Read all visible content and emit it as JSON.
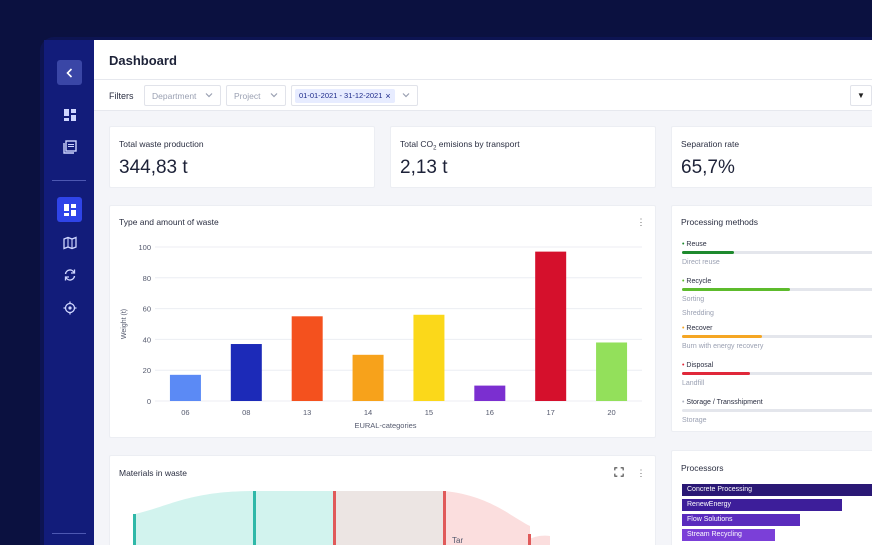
{
  "header": {
    "title": "Dashboard"
  },
  "filters": {
    "label": "Filters",
    "department": "Department",
    "project": "Project",
    "date_range": "01-01-2021 - 31-12-2021",
    "dropdown_icon": "caret-down-icon"
  },
  "kpis": [
    {
      "label": "Total waste production",
      "value": "344,83 t"
    },
    {
      "label_pre": "Total CO",
      "label_sub": "2",
      "label_post": " emisions by transport",
      "value": "2,13 t"
    },
    {
      "label": "Separation rate",
      "value": "65,7%"
    }
  ],
  "waste_chart": {
    "title": "Type and amount of waste",
    "menu_icon": "kebab-menu-icon"
  },
  "chart_data": {
    "type": "bar",
    "categories": [
      "06",
      "08",
      "13",
      "14",
      "15",
      "16",
      "17",
      "20"
    ],
    "values": [
      17,
      37,
      55,
      30,
      56,
      10,
      97,
      38
    ],
    "colors": [
      "#5b8af5",
      "#1c2ab8",
      "#f4511e",
      "#f7a21b",
      "#fbd81a",
      "#7b2fd0",
      "#d5102c",
      "#93e05b"
    ],
    "xlabel": "EURAL-categories",
    "ylabel": "Weight (t)",
    "ylim": [
      0,
      100
    ],
    "yticks": [
      0,
      20,
      40,
      60,
      80,
      100
    ],
    "grid": true
  },
  "processing": {
    "title": "Processing methods",
    "items": [
      {
        "name": "Reuse",
        "color": "#1e8a2e",
        "fraction": 0.26,
        "subs": [
          "Direct reuse"
        ]
      },
      {
        "name": "Recycle",
        "color": "#5dbb2c",
        "fraction": 0.54,
        "subs": [
          "Sorting",
          "Shredding"
        ]
      },
      {
        "name": "Recover",
        "color": "#f5a623",
        "fraction": 0.4,
        "subs": [
          "Burn with energy recovery"
        ]
      },
      {
        "name": "Disposal",
        "color": "#e0283a",
        "fraction": 0.34,
        "subs": [
          "Landfill"
        ]
      },
      {
        "name": "Storage / Transshipment",
        "color": "#b0b4c2",
        "fraction": 0.0,
        "subs": [
          "Storage"
        ]
      }
    ]
  },
  "materials": {
    "title": "Materials in waste",
    "expand_icon": "expand-icon",
    "menu_icon": "kebab-menu-icon",
    "partial_label": "Tar"
  },
  "processors": {
    "title": "Processors",
    "items": [
      {
        "name": "Concrete Processing",
        "color": "#2a1875",
        "fraction": 1.0
      },
      {
        "name": "RenewEnergy",
        "color": "#3d1e9a",
        "fraction": 0.84
      },
      {
        "name": "Flow Solutions",
        "color": "#5a2bbd",
        "fraction": 0.62
      },
      {
        "name": "Stream Recycling",
        "color": "#7b3fd8",
        "fraction": 0.49
      }
    ]
  }
}
